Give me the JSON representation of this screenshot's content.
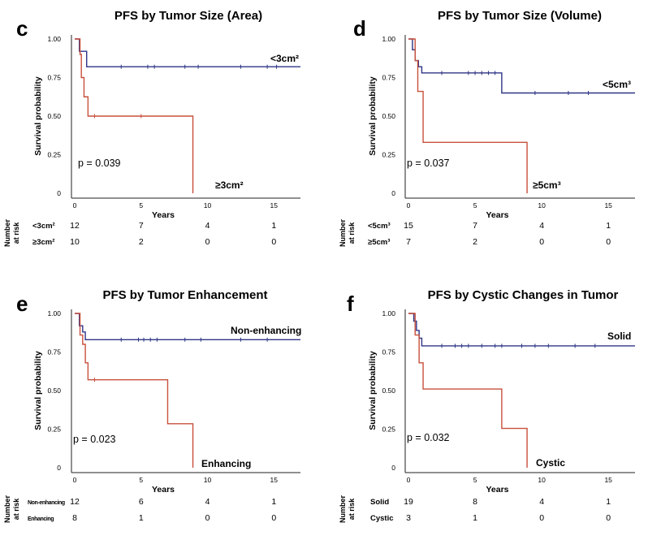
{
  "chart_data": [
    {
      "letter": "c",
      "type": "line",
      "title": "PFS by Tumor Size (Area)",
      "ylabel": "Survival probability",
      "xlabel": "Years",
      "xlim": [
        0,
        17
      ],
      "ylim": [
        0,
        1
      ],
      "x_ticks": [
        "0",
        "5",
        "10",
        "15"
      ],
      "y_ticks": [
        "1.00",
        "0.75",
        "0.50",
        "0.25",
        "0"
      ],
      "p_value": "p = 0.039",
      "series": [
        {
          "name": "<3cm²",
          "color": "#2e3586",
          "steps": [
            [
              0,
              1.0
            ],
            [
              0.35,
              0.92
            ],
            [
              0.9,
              0.82
            ],
            [
              17,
              0.82
            ]
          ],
          "censors": [
            3.5,
            5.5,
            6.0,
            8.3,
            9.3,
            12.5,
            14.5,
            15.2
          ]
        },
        {
          "name": "≥3cm²",
          "color": "#c8503c",
          "steps": [
            [
              0,
              1.0
            ],
            [
              0.4,
              0.9
            ],
            [
              0.5,
              0.75
            ],
            [
              0.7,
              0.625
            ],
            [
              1.0,
              0.5
            ],
            [
              8.9,
              0.0
            ],
            [
              8.9,
              0.0
            ]
          ],
          "censors": [
            1.5,
            5.0
          ]
        }
      ],
      "risk_label": "Number at risk",
      "risk_table": [
        {
          "group": "<3cm²",
          "counts": [
            "12",
            "7",
            "4",
            "1"
          ]
        },
        {
          "group": "≥3cm²",
          "counts": [
            "10",
            "2",
            "0",
            "0"
          ]
        }
      ]
    },
    {
      "letter": "d",
      "type": "line",
      "title": "PFS by Tumor Size (Volume)",
      "ylabel": "Survival probability",
      "xlabel": "Years",
      "xlim": [
        0,
        17
      ],
      "ylim": [
        0,
        1
      ],
      "x_ticks": [
        "0",
        "5",
        "10",
        "15"
      ],
      "y_ticks": [
        "1.00",
        "0.75",
        "0.50",
        "0.25",
        "0"
      ],
      "p_value": "p = 0.037",
      "series": [
        {
          "name": "<5cm³",
          "color": "#2e3586",
          "steps": [
            [
              0,
              1.0
            ],
            [
              0.3,
              0.93
            ],
            [
              0.5,
              0.86
            ],
            [
              0.75,
              0.82
            ],
            [
              1.0,
              0.78
            ],
            [
              7.0,
              0.65
            ],
            [
              17,
              0.65
            ]
          ],
          "censors": [
            2.5,
            4.5,
            5.0,
            5.5,
            6.0,
            6.5,
            9.5,
            12.0,
            13.5
          ]
        },
        {
          "name": "≥5cm³",
          "color": "#c8503c",
          "steps": [
            [
              0,
              1.0
            ],
            [
              0.5,
              0.86
            ],
            [
              0.7,
              0.66
            ],
            [
              1.1,
              0.33
            ],
            [
              8.9,
              0.0
            ],
            [
              8.9,
              0.0
            ]
          ],
          "censors": []
        }
      ],
      "risk_label": "Number at risk",
      "risk_table": [
        {
          "group": "<5cm³",
          "counts": [
            "15",
            "7",
            "4",
            "1"
          ]
        },
        {
          "group": "≥5cm³",
          "counts": [
            "7",
            "2",
            "0",
            "0"
          ]
        }
      ]
    },
    {
      "letter": "e",
      "type": "line",
      "title": "PFS by Tumor Enhancement",
      "ylabel": "Survival probability",
      "xlabel": "Years",
      "xlim": [
        0,
        17
      ],
      "ylim": [
        0,
        1
      ],
      "x_ticks": [
        "0",
        "5",
        "10",
        "15"
      ],
      "y_ticks": [
        "1.00",
        "0.75",
        "0.50",
        "0.25",
        "0"
      ],
      "p_value": "p = 0.023",
      "series": [
        {
          "name": "Non-enhancing",
          "color": "#2e3586",
          "steps": [
            [
              0,
              1.0
            ],
            [
              0.35,
              0.92
            ],
            [
              0.6,
              0.88
            ],
            [
              0.8,
              0.83
            ],
            [
              17,
              0.83
            ]
          ],
          "censors": [
            3.5,
            4.8,
            5.2,
            5.7,
            6.2,
            8.3,
            9.5,
            12.5,
            14.5
          ]
        },
        {
          "name": "Enhancing",
          "color": "#c8503c",
          "steps": [
            [
              0,
              1.0
            ],
            [
              0.4,
              0.86
            ],
            [
              0.6,
              0.8
            ],
            [
              0.8,
              0.68
            ],
            [
              1.0,
              0.57
            ],
            [
              7.0,
              0.285
            ],
            [
              8.9,
              0.0
            ],
            [
              8.9,
              0.0
            ]
          ],
          "censors": [
            1.5
          ]
        }
      ],
      "risk_label": "Number at risk",
      "risk_table": [
        {
          "group": "Non-enhancing",
          "counts": [
            "12",
            "6",
            "4",
            "1"
          ]
        },
        {
          "group": "Enhancing",
          "counts": [
            "8",
            "1",
            "0",
            "0"
          ]
        }
      ]
    },
    {
      "letter": "f",
      "type": "line",
      "title": "PFS by Cystic Changes in Tumor",
      "ylabel": "Survival probability",
      "xlabel": "Years",
      "xlim": [
        0,
        17
      ],
      "ylim": [
        0,
        1
      ],
      "x_ticks": [
        "0",
        "5",
        "10",
        "15"
      ],
      "y_ticks": [
        "1.00",
        "0.75",
        "0.50",
        "0.25",
        "0"
      ],
      "p_value": "p = 0.032",
      "series": [
        {
          "name": "Solid",
          "color": "#2e3586",
          "steps": [
            [
              0,
              1.0
            ],
            [
              0.4,
              0.95
            ],
            [
              0.6,
              0.89
            ],
            [
              0.8,
              0.84
            ],
            [
              1.0,
              0.79
            ],
            [
              17,
              0.79
            ]
          ],
          "censors": [
            2.5,
            3.5,
            4.0,
            4.5,
            5.5,
            6.5,
            7.0,
            8.5,
            9.5,
            10.5,
            12.5,
            14.0
          ]
        },
        {
          "name": "Cystic",
          "color": "#c8503c",
          "steps": [
            [
              0,
              1.0
            ],
            [
              0.5,
              0.86
            ],
            [
              0.8,
              0.68
            ],
            [
              1.1,
              0.51
            ],
            [
              7.0,
              0.255
            ],
            [
              8.9,
              0.0
            ],
            [
              8.9,
              0.0
            ]
          ],
          "censors": []
        }
      ],
      "risk_label": "Number at risk",
      "risk_table": [
        {
          "group": "Solid",
          "counts": [
            "19",
            "8",
            "4",
            "1"
          ]
        },
        {
          "group": "Cystic",
          "counts": [
            "3",
            "1",
            "0",
            "0"
          ]
        }
      ]
    }
  ]
}
